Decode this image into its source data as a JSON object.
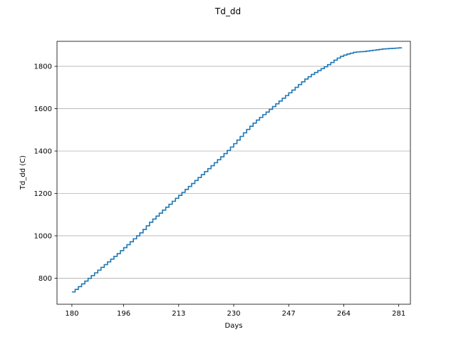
{
  "chart_data": {
    "type": "line",
    "title": "Td_dd",
    "xlabel": "Days",
    "ylabel": "Td_dd (C)",
    "xlim": [
      175.4,
      284.6
    ],
    "ylim": [
      677,
      1918
    ],
    "x_ticks": [
      180,
      196,
      213,
      230,
      247,
      264,
      281
    ],
    "y_ticks": [
      800,
      1000,
      1200,
      1400,
      1600,
      1800
    ],
    "grid": "horizontal",
    "line_color": "#1f77b4",
    "series": [
      {
        "x": [
          180,
          181,
          182,
          183,
          184,
          185,
          186,
          187,
          188,
          189,
          190,
          191,
          192,
          193,
          194,
          195,
          196,
          197,
          198,
          199,
          200,
          201,
          202,
          203,
          204,
          205,
          206,
          207,
          208,
          209,
          210,
          211,
          212,
          213,
          214,
          215,
          216,
          217,
          218,
          219,
          220,
          221,
          222,
          223,
          224,
          225,
          226,
          227,
          228,
          229,
          230,
          231,
          232,
          233,
          234,
          235,
          236,
          237,
          238,
          239,
          240,
          241,
          242,
          243,
          244,
          245,
          246,
          247,
          248,
          249,
          250,
          251,
          252,
          253,
          254,
          255,
          256,
          257,
          258,
          259,
          260,
          261,
          262,
          263,
          264,
          265,
          266,
          267,
          268,
          269,
          270,
          271,
          272,
          273,
          274,
          275,
          276,
          277,
          278,
          279,
          280,
          281,
          282
        ],
        "y": [
          735,
          747,
          760,
          773,
          786,
          799,
          812,
          825,
          838,
          851,
          864,
          877,
          890,
          903,
          916,
          930,
          944,
          958,
          972,
          986,
          1000,
          1014,
          1030,
          1047,
          1064,
          1079,
          1093,
          1107,
          1121,
          1135,
          1149,
          1163,
          1177,
          1191,
          1205,
          1219,
          1233,
          1247,
          1261,
          1275,
          1289,
          1303,
          1317,
          1331,
          1345,
          1359,
          1373,
          1388,
          1403,
          1419,
          1435,
          1452,
          1469,
          1486,
          1502,
          1517,
          1532,
          1546,
          1559,
          1572,
          1584,
          1597,
          1610,
          1623,
          1636,
          1649,
          1662,
          1675,
          1688,
          1701,
          1714,
          1727,
          1740,
          1751,
          1762,
          1771,
          1780,
          1789,
          1798,
          1808,
          1818,
          1829,
          1839,
          1847,
          1853,
          1858,
          1862,
          1866,
          1868,
          1869,
          1870,
          1872,
          1874,
          1876,
          1878,
          1880,
          1882,
          1883,
          1884,
          1885,
          1886,
          1887,
          1887
        ]
      }
    ]
  }
}
